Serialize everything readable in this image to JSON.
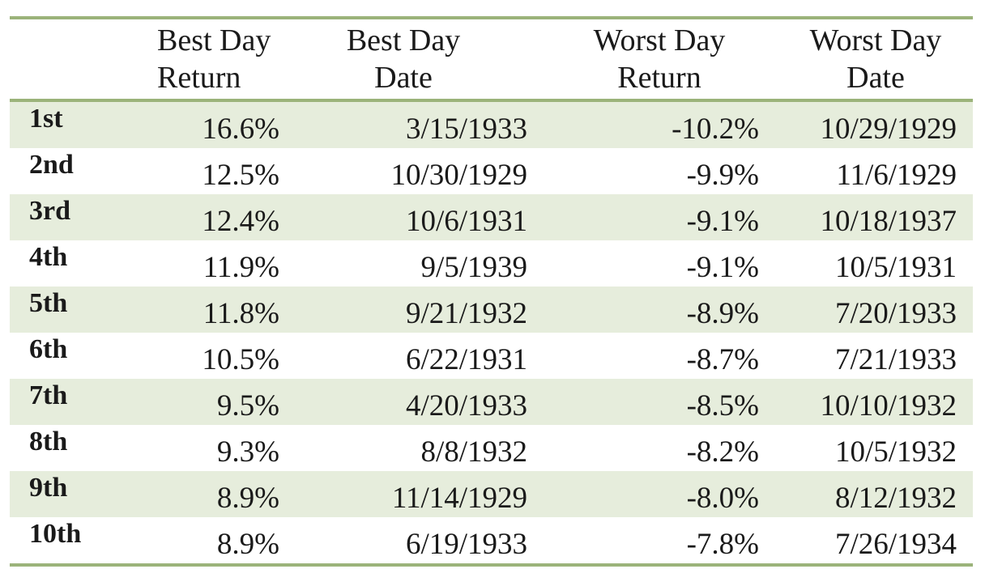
{
  "header": {
    "best_return": [
      "Best Day",
      "Return"
    ],
    "best_date": [
      "Best Day",
      "Date"
    ],
    "worst_return": [
      "Worst Day",
      "Return"
    ],
    "worst_date": [
      "Worst Day",
      "Date"
    ]
  },
  "rows": [
    {
      "rank": "1st",
      "best_return": "16.6%",
      "best_date": "3/15/1933",
      "worst_return": "-10.2%",
      "worst_date": "10/29/1929"
    },
    {
      "rank": "2nd",
      "best_return": "12.5%",
      "best_date": "10/30/1929",
      "worst_return": "-9.9%",
      "worst_date": "11/6/1929"
    },
    {
      "rank": "3rd",
      "best_return": "12.4%",
      "best_date": "10/6/1931",
      "worst_return": "-9.1%",
      "worst_date": "10/18/1937"
    },
    {
      "rank": "4th",
      "best_return": "11.9%",
      "best_date": "9/5/1939",
      "worst_return": "-9.1%",
      "worst_date": "10/5/1931"
    },
    {
      "rank": "5th",
      "best_return": "11.8%",
      "best_date": "9/21/1932",
      "worst_return": "-8.9%",
      "worst_date": "7/20/1933"
    },
    {
      "rank": "6th",
      "best_return": "10.5%",
      "best_date": "6/22/1931",
      "worst_return": "-8.7%",
      "worst_date": "7/21/1933"
    },
    {
      "rank": "7th",
      "best_return": "9.5%",
      "best_date": "4/20/1933",
      "worst_return": "-8.5%",
      "worst_date": "10/10/1932"
    },
    {
      "rank": "8th",
      "best_return": "9.3%",
      "best_date": "8/8/1932",
      "worst_return": "-8.2%",
      "worst_date": "10/5/1932"
    },
    {
      "rank": "9th",
      "best_return": "8.9%",
      "best_date": "11/14/1929",
      "worst_return": "-8.0%",
      "worst_date": "8/12/1932"
    },
    {
      "rank": "10th",
      "best_return": "8.9%",
      "best_date": "6/19/1933",
      "worst_return": "-7.8%",
      "worst_date": "7/26/1934"
    }
  ],
  "colors": {
    "rule": "#9bb37a",
    "shade": "#e6eddc"
  }
}
